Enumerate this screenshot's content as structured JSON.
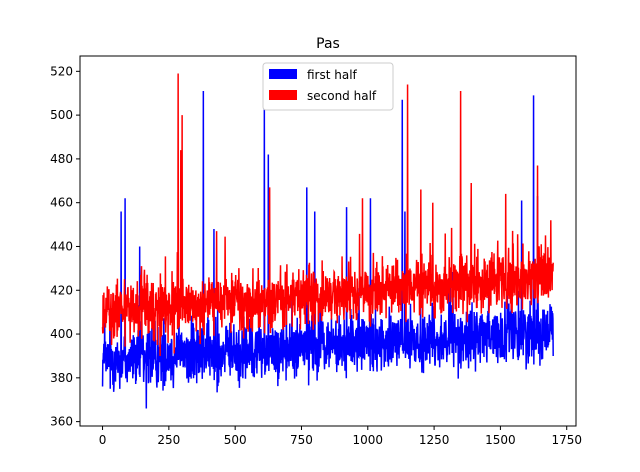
{
  "chart_data": {
    "type": "line",
    "title": "Pas",
    "xlabel": "",
    "ylabel": "",
    "xlim": [
      -85,
      1785
    ],
    "ylim": [
      358,
      527
    ],
    "xticks": [
      0,
      250,
      500,
      750,
      1000,
      1250,
      1500,
      1750
    ],
    "yticks": [
      360,
      380,
      400,
      420,
      440,
      460,
      480,
      500,
      520
    ],
    "legend_position": "top-center",
    "grid": false,
    "series": [
      {
        "name": "first half",
        "color": "#0000ff",
        "n_points": 1700,
        "trend_start": 388,
        "trend_end": 401,
        "spikes": [
          {
            "x": 70,
            "y": 456
          },
          {
            "x": 85,
            "y": 462
          },
          {
            "x": 140,
            "y": 440
          },
          {
            "x": 165,
            "y": 366
          },
          {
            "x": 380,
            "y": 511
          },
          {
            "x": 420,
            "y": 448
          },
          {
            "x": 610,
            "y": 503
          },
          {
            "x": 625,
            "y": 482
          },
          {
            "x": 770,
            "y": 467
          },
          {
            "x": 800,
            "y": 456
          },
          {
            "x": 920,
            "y": 458
          },
          {
            "x": 1010,
            "y": 462
          },
          {
            "x": 1130,
            "y": 507
          },
          {
            "x": 1140,
            "y": 456
          },
          {
            "x": 1580,
            "y": 461
          },
          {
            "x": 1625,
            "y": 509
          },
          {
            "x": 1640,
            "y": 463
          }
        ]
      },
      {
        "name": "second half",
        "color": "#ff0000",
        "n_points": 1700,
        "trend_start": 410,
        "trend_end": 426,
        "spikes": [
          {
            "x": 285,
            "y": 519
          },
          {
            "x": 300,
            "y": 500
          },
          {
            "x": 295,
            "y": 484
          },
          {
            "x": 430,
            "y": 447
          },
          {
            "x": 630,
            "y": 467
          },
          {
            "x": 980,
            "y": 462
          },
          {
            "x": 1150,
            "y": 514
          },
          {
            "x": 1200,
            "y": 466
          },
          {
            "x": 1245,
            "y": 460
          },
          {
            "x": 1350,
            "y": 511
          },
          {
            "x": 1390,
            "y": 469
          },
          {
            "x": 1520,
            "y": 464
          },
          {
            "x": 1640,
            "y": 477
          },
          {
            "x": 1690,
            "y": 452
          }
        ]
      }
    ]
  }
}
